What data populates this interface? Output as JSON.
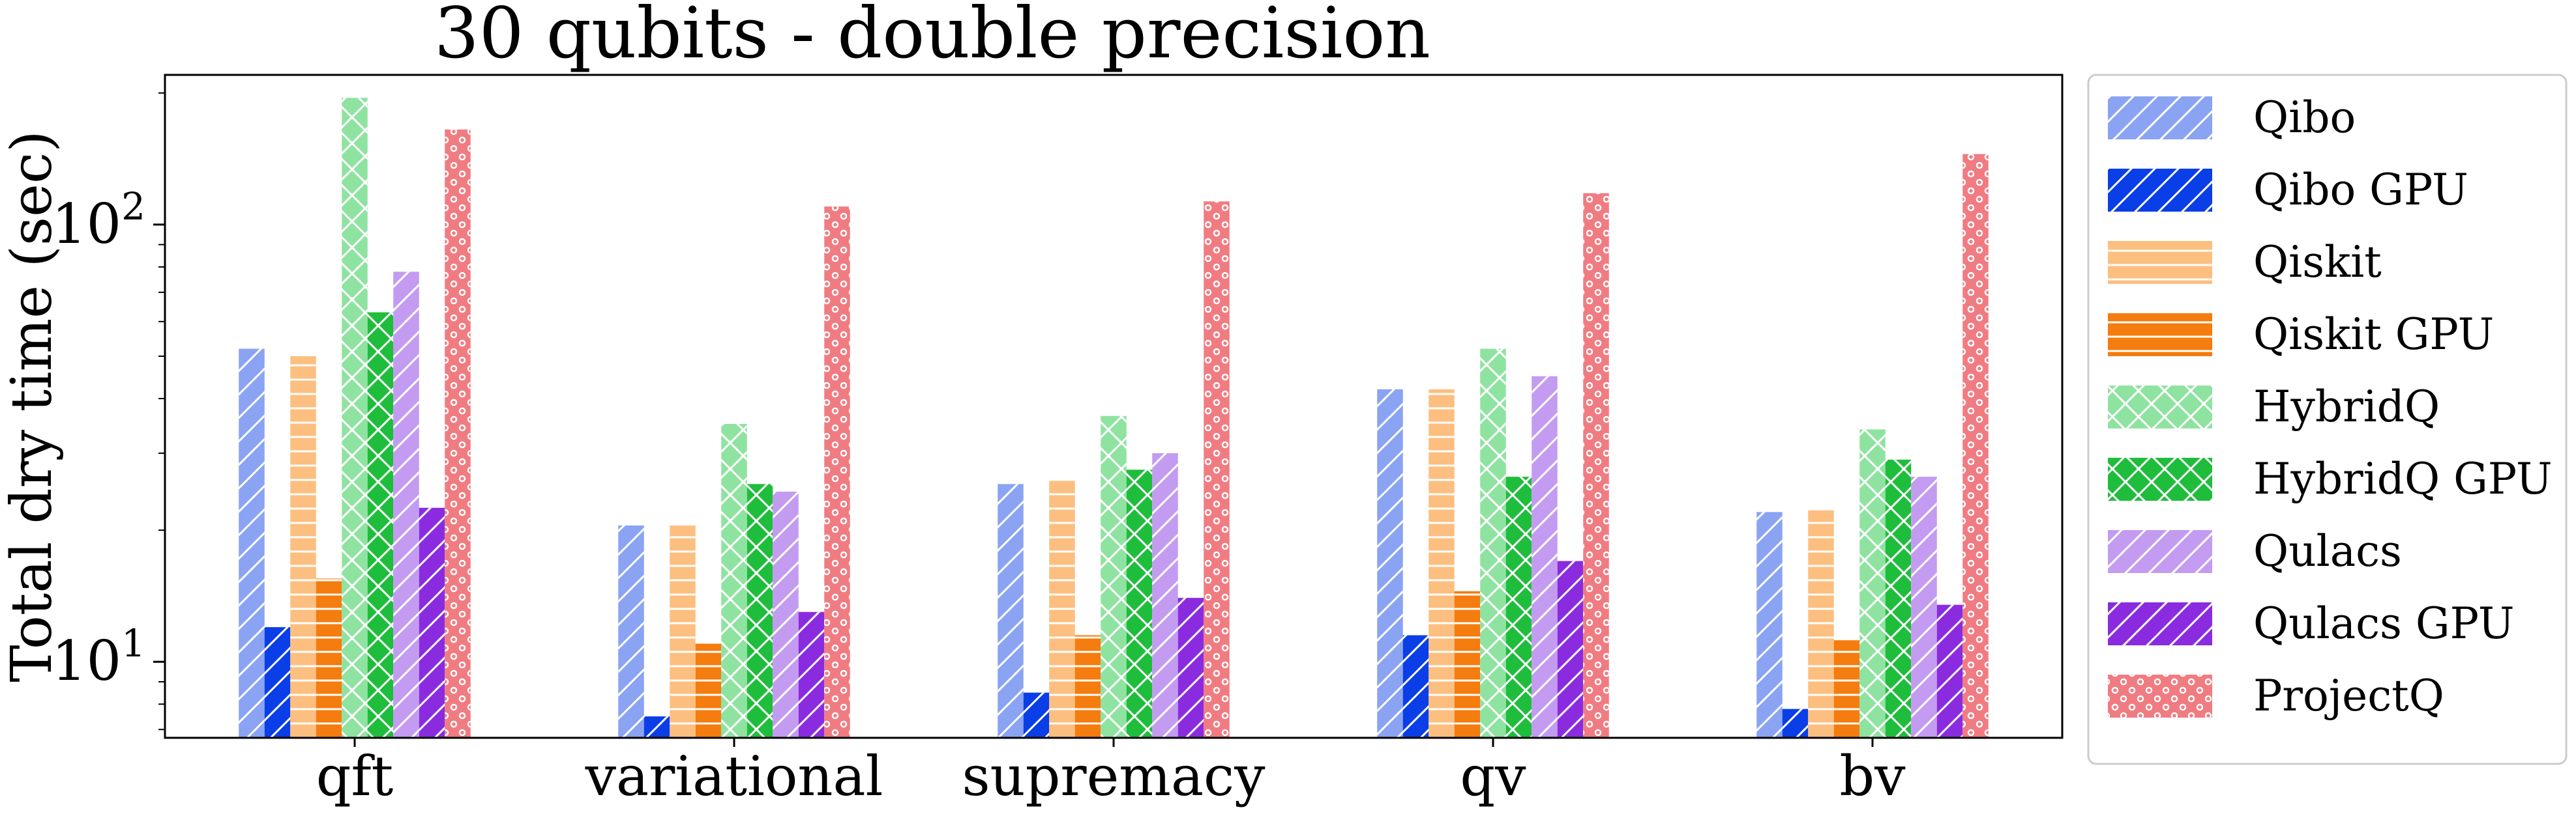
{
  "chart_data": {
    "type": "bar",
    "title": "30 qubits - double precision",
    "xlabel": "",
    "ylabel": "Total dry time (sec)",
    "yscale": "log",
    "ylim": [
      6.7,
      220
    ],
    "ytick_labels": [
      {
        "value": 10,
        "base": "10",
        "exp": "1"
      },
      {
        "value": 100,
        "base": "10",
        "exp": "2"
      }
    ],
    "categories": [
      "qft",
      "variational",
      "supremacy",
      "qv",
      "bv"
    ],
    "legend_placement": "outside-right",
    "grid": false,
    "series": [
      {
        "name": "Qibo",
        "color": "#8aa3f3",
        "hatch": "diag",
        "values": [
          52,
          20.5,
          25.5,
          42,
          22
        ]
      },
      {
        "name": "Qibo GPU",
        "color": "#0a3ee6",
        "hatch": "diag",
        "values": [
          12,
          7.5,
          8.5,
          11.5,
          7.8
        ]
      },
      {
        "name": "Qiskit",
        "color": "#fcbf80",
        "hatch": "horiz",
        "values": [
          50,
          20.5,
          26,
          42,
          22.2
        ]
      },
      {
        "name": "Qiskit GPU",
        "color": "#f57c0e",
        "hatch": "horiz",
        "values": [
          15.5,
          11,
          11.5,
          14.5,
          11.2
        ]
      },
      {
        "name": "HybridQ",
        "color": "#8fe3a0",
        "hatch": "cross",
        "values": [
          195,
          35,
          36.5,
          52,
          34
        ]
      },
      {
        "name": "HybridQ GPU",
        "color": "#1fbd3c",
        "hatch": "cross",
        "values": [
          63,
          25.5,
          27.5,
          26.5,
          29
        ]
      },
      {
        "name": "Qulacs",
        "color": "#c39cf1",
        "hatch": "diag",
        "values": [
          78,
          24.5,
          30,
          45,
          26.5
        ]
      },
      {
        "name": "Qulacs GPU",
        "color": "#8a2be0",
        "hatch": "diag",
        "values": [
          22.5,
          13,
          14,
          17,
          13.5
        ]
      },
      {
        "name": "ProjectQ",
        "color": "#f07c82",
        "hatch": "dots",
        "values": [
          165,
          110,
          113,
          118,
          145
        ]
      }
    ]
  }
}
